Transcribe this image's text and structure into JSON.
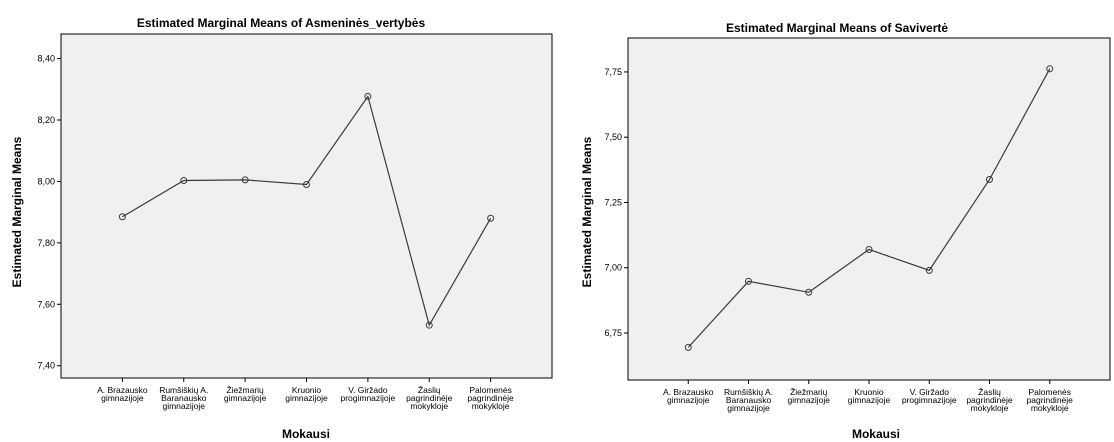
{
  "colors": {
    "plot_bg": "#f0f0f0",
    "line": "#3a3a3a",
    "axis": "#000000"
  },
  "chart_data": [
    {
      "type": "line",
      "title": "Estimated Marginal Means of Asmeninės_vertybės",
      "xlabel": "Mokausi",
      "ylabel": "Estimated Marginal Means",
      "categories": [
        [
          "A. Brazausko",
          "gimnazijoje"
        ],
        [
          "Rumšiškių A.",
          "Baranausko",
          "gimnazijoje"
        ],
        [
          "Žiežmarių",
          "gimnazijoje"
        ],
        [
          "Kruonio",
          "gimnazijoje"
        ],
        [
          "V. Giržado",
          "progimnazijoje"
        ],
        [
          "Žaslių",
          "pagrindinėje",
          "mokykloje"
        ],
        [
          "Palomenės",
          "pagrindinėje",
          "mokykloje"
        ]
      ],
      "values": [
        7.885,
        8.003,
        8.005,
        7.99,
        8.277,
        7.532,
        7.88
      ],
      "ylim": [
        7.36,
        8.48
      ],
      "yticks": [
        7.4,
        7.6,
        7.8,
        8.0,
        8.2,
        8.4
      ],
      "ytick_labels": [
        "7,40",
        "7,60",
        "7,80",
        "8,00",
        "8,20",
        "8,40"
      ],
      "grid": false
    },
    {
      "type": "line",
      "title": "Estimated Marginal Means of Savivertė",
      "xlabel": "Mokausi",
      "ylabel": "Estimated Marginal Means",
      "categories": [
        [
          "A. Brazausko",
          "gimnazijoje"
        ],
        [
          "Rumšiškių A.",
          "Baranausko",
          "gimnazijoje"
        ],
        [
          "Žiežmarių",
          "gimnazijoje"
        ],
        [
          "Kruonio",
          "gimnazijoje"
        ],
        [
          "V. Giržado",
          "progimnazijoje"
        ],
        [
          "Žaslių",
          "pagrindinėje",
          "mokykloje"
        ],
        [
          "Palomenės",
          "pagrindinėje",
          "mokykloje"
        ]
      ],
      "values": [
        6.695,
        6.948,
        6.906,
        7.07,
        6.99,
        7.338,
        7.762
      ],
      "ylim": [
        6.57,
        7.88
      ],
      "yticks": [
        6.75,
        7.0,
        7.25,
        7.5,
        7.75
      ],
      "ytick_labels": [
        "6,75",
        "7,00",
        "7,25",
        "7,50",
        "7,75"
      ],
      "grid": false
    }
  ]
}
